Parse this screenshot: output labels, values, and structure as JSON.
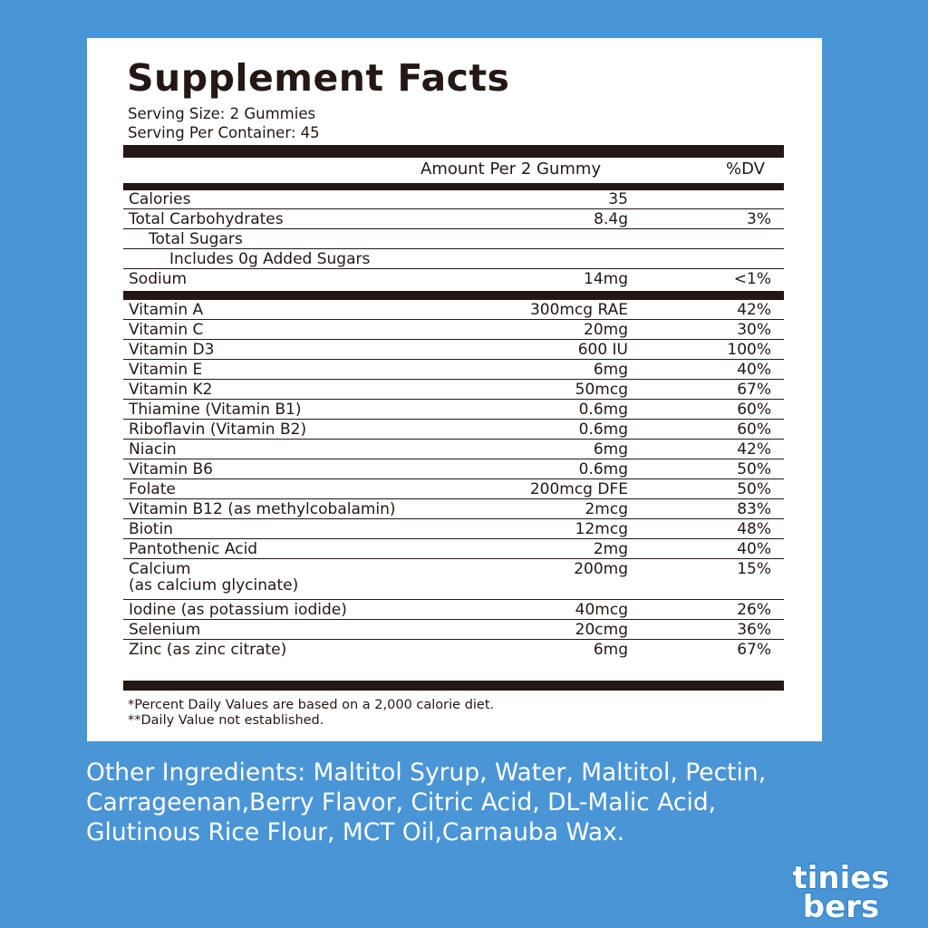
{
  "title": "Supplement Facts",
  "serving_size": "Serving Size: 2 Gummies",
  "servings_per_container": "Serving Per Container: 45",
  "header": {
    "amount": "Amount Per 2 Gummy",
    "dv": "%DV"
  },
  "group1": [
    {
      "name": "Calories",
      "amount": "35",
      "dv": ""
    },
    {
      "name": "Total Carbohydrates",
      "amount": "8.4g",
      "dv": "3%"
    },
    {
      "name": "Total Sugars",
      "amount": "",
      "dv": ""
    },
    {
      "name": "Includes 0g Added Sugars",
      "amount": "",
      "dv": ""
    },
    {
      "name": "Sodium",
      "amount": "14mg",
      "dv": "<1%"
    }
  ],
  "group2": [
    {
      "name": "Vitamin A",
      "amount": "300mcg RAE",
      "dv": "42%"
    },
    {
      "name": "Vitamin C",
      "amount": "20mg",
      "dv": "30%"
    },
    {
      "name": "Vitamin D3",
      "amount": "600 IU",
      "dv": "100%"
    },
    {
      "name": "Vitamin E",
      "amount": "6mg",
      "dv": "40%"
    },
    {
      "name": "Vitamin K2",
      "amount": "50mcg",
      "dv": "67%"
    },
    {
      "name": "Thiamine (Vitamin B1)",
      "amount": "0.6mg",
      "dv": "60%"
    },
    {
      "name": "Riboflavin (Vitamin B2)",
      "amount": "0.6mg",
      "dv": "60%"
    },
    {
      "name": "Niacin",
      "amount": "6mg",
      "dv": "42%"
    },
    {
      "name": "Vitamin B6",
      "amount": "0.6mg",
      "dv": "50%"
    },
    {
      "name": "Folate",
      "amount": "200mcg DFE",
      "dv": "50%"
    },
    {
      "name": "Vitamin B12 (as methylcobalamin)",
      "amount": "2mcg",
      "dv": "83%"
    },
    {
      "name": "Biotin",
      "amount": "12mcg",
      "dv": "48%"
    },
    {
      "name": "Pantothenic Acid",
      "amount": "2mg",
      "dv": "40%"
    },
    {
      "name": "Calcium",
      "name2": "(as calcium glycinate)",
      "amount": "200mg",
      "dv": "15%"
    },
    {
      "name": "Iodine (as potassium iodide)",
      "amount": "40mcg",
      "dv": "26%"
    },
    {
      "name": "Selenium",
      "amount": "20cmg",
      "dv": "36%"
    },
    {
      "name": "Zinc (as zinc citrate)",
      "amount": "6mg",
      "dv": "67%"
    }
  ],
  "footnote1": "*Percent Daily Values are based on a 2,000 calorie diet.",
  "footnote2": "**Daily Value not established.",
  "ingredients_line1": "Other Ingredients: Maltitol Syrup, Water, Maltitol, Pectin,",
  "ingredients_line2": "Carrageenan,Berry Flavor, Citric Acid, DL-Malic Acid,",
  "ingredients_line3": "Glutinous Rice Flour, MCT Oil,Carnauba Wax.",
  "logo": {
    "line1": "tinies",
    "line2": "bers",
    "fill": "#ffffff",
    "stroke": "#4a95d5"
  }
}
